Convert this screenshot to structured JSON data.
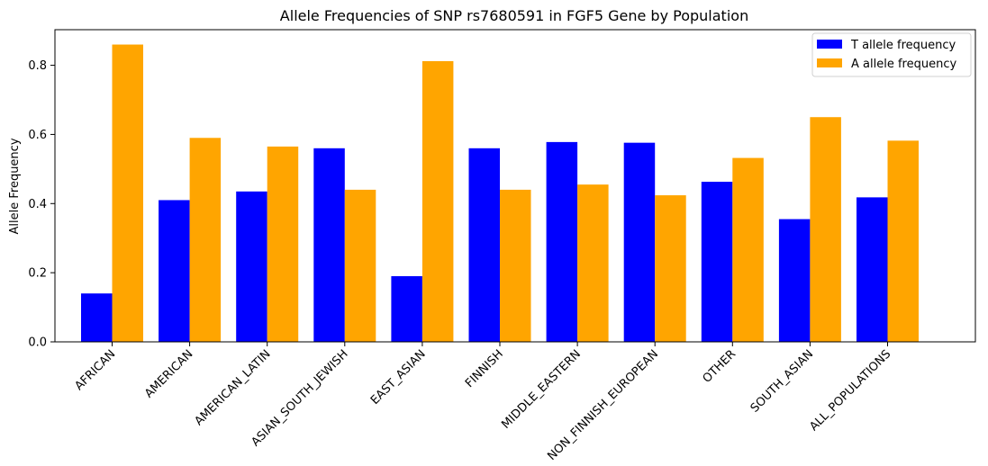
{
  "chart_data": {
    "type": "bar",
    "title": "Allele Frequencies of SNP rs7680591 in FGF5 Gene by Population",
    "xlabel": "",
    "ylabel": "Allele Frequency",
    "ylim": [
      0,
      0.903
    ],
    "yticks": [
      "0.0",
      "0.2",
      "0.4",
      "0.6",
      "0.8"
    ],
    "categories": [
      "AFRICAN",
      "AMERICAN",
      "AMERICAN_LATIN",
      "ASIAN_SOUTH_JEWISH",
      "EAST_ASIAN",
      "FINNISH",
      "MIDDLE_EASTERN",
      "NON_FINNISH_EUROPEAN",
      "OTHER",
      "SOUTH_ASIAN",
      "ALL_POPULATIONS"
    ],
    "series": [
      {
        "name": "T allele frequency",
        "color": "#0000ff",
        "values": [
          0.14,
          0.41,
          0.435,
          0.56,
          0.19,
          0.56,
          0.578,
          0.576,
          0.463,
          0.355,
          0.418
        ]
      },
      {
        "name": "A allele frequency",
        "color": "#ffa500",
        "values": [
          0.86,
          0.59,
          0.565,
          0.44,
          0.812,
          0.44,
          0.455,
          0.424,
          0.532,
          0.65,
          0.582
        ]
      }
    ],
    "legend_position": "top-right",
    "grid": false
  }
}
